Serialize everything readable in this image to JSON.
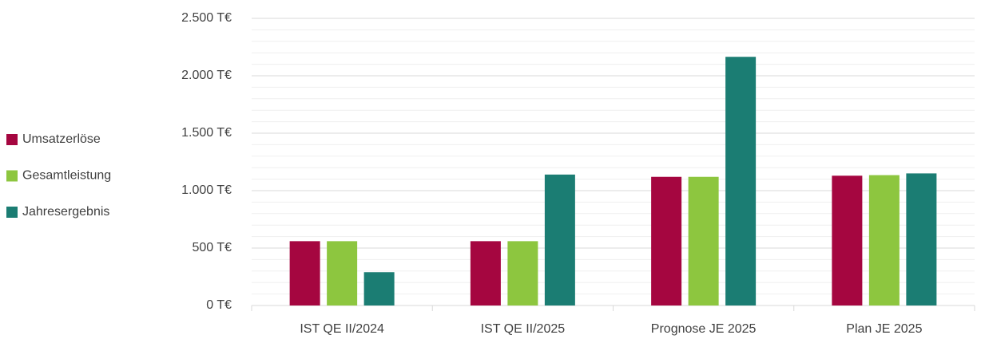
{
  "chart_data": {
    "type": "bar",
    "categories": [
      "IST QE II/2024",
      "IST QE II/2025",
      "Prognose JE 2025",
      "Plan JE 2025"
    ],
    "series": [
      {
        "name": "Umsatzerlöse",
        "color": "#a50640",
        "values": [
          560,
          560,
          1120,
          1130
        ]
      },
      {
        "name": "Gesamtleistung",
        "color": "#8dc63f",
        "values": [
          560,
          560,
          1120,
          1135
        ]
      },
      {
        "name": "Jahresergebnis",
        "color": "#1b7d73",
        "values": [
          290,
          1140,
          2165,
          1150
        ]
      }
    ],
    "ylim": [
      0,
      2500
    ],
    "yticks": [
      {
        "value": 0,
        "label": "0 T€"
      },
      {
        "value": 500,
        "label": "500 T€"
      },
      {
        "value": 1000,
        "label": "1.000 T€"
      },
      {
        "value": 1500,
        "label": "1.500 T€"
      },
      {
        "value": 2000,
        "label": "2.000 T€"
      },
      {
        "value": 2500,
        "label": "2.500 T€"
      }
    ],
    "minor_yticks": [
      100,
      200,
      300,
      400,
      600,
      700,
      800,
      900,
      1100,
      1200,
      1300,
      1400,
      1600,
      1700,
      1800,
      1900,
      2100,
      2200,
      2300,
      2400
    ],
    "grid": true,
    "legend": "left"
  }
}
